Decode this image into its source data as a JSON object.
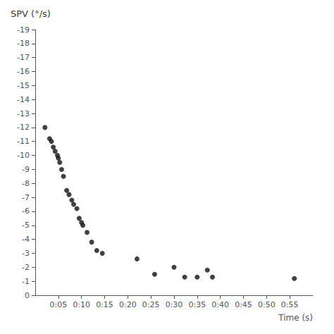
{
  "chart_data": {
    "type": "scatter",
    "title": "SPV (°/s)",
    "xlabel": "Time (s)",
    "x": [
      0.021,
      0.031,
      0.035,
      0.039,
      0.043,
      0.048,
      0.05,
      0.053,
      0.057,
      0.061,
      0.068,
      0.073,
      0.079,
      0.083,
      0.09,
      0.095,
      0.1,
      0.103,
      0.112,
      0.122,
      0.133,
      0.145,
      0.22,
      0.258,
      0.3,
      0.323,
      0.35,
      0.372,
      0.383,
      0.56
    ],
    "values": [
      -12.0,
      -11.2,
      -11.0,
      -10.6,
      -10.3,
      -10.0,
      -9.8,
      -9.5,
      -9.0,
      -8.5,
      -7.5,
      -7.2,
      -6.8,
      -6.5,
      -6.2,
      -5.5,
      -5.2,
      -5.0,
      -4.5,
      -3.8,
      -3.2,
      -3.0,
      -2.6,
      -1.5,
      -2.0,
      -1.3,
      -1.3,
      -1.8,
      -1.3,
      -1.2
    ],
    "color": "#111111",
    "marker": "circle",
    "xlim": [
      0.0,
      0.6
    ],
    "xticks": [
      {
        "value": 0.05,
        "label": "0:05"
      },
      {
        "value": 0.1,
        "label": "0:10"
      },
      {
        "value": 0.15,
        "label": "0:15"
      },
      {
        "value": 0.2,
        "label": "0:20"
      },
      {
        "value": 0.25,
        "label": "0:25"
      },
      {
        "value": 0.3,
        "label": "0:30"
      },
      {
        "value": 0.35,
        "label": "0:35"
      },
      {
        "value": 0.4,
        "label": "0:40"
      },
      {
        "value": 0.45,
        "label": "0:45"
      },
      {
        "value": 0.5,
        "label": "0:50"
      },
      {
        "value": 0.55,
        "label": "0:55"
      }
    ],
    "ylim": [
      0,
      -19
    ],
    "yticks": [
      0,
      -1,
      -2,
      -3,
      -4,
      -5,
      -6,
      -7,
      -8,
      -9,
      -10,
      -11,
      -12,
      -13,
      -14,
      -15,
      -16,
      -17,
      -18,
      -19
    ],
    "grid": false
  }
}
